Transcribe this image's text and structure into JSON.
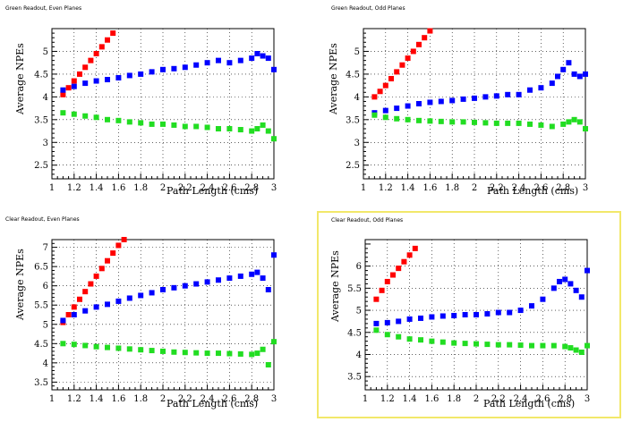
{
  "chart_data": [
    {
      "type": "scatter",
      "title": "Green Readout, Even Planes",
      "xlabel": "Path Length (cms)",
      "ylabel": "Average NPEs",
      "xlim": [
        1,
        3
      ],
      "ylim": [
        2.2,
        5.5
      ],
      "x_ticks": [
        "1",
        "1.2",
        "1.4",
        "1.6",
        "1.8",
        "2",
        "2.2",
        "2.4",
        "2.6",
        "2.8",
        "3"
      ],
      "y_ticks": [
        2.5,
        3,
        3.5,
        4,
        4.5,
        5
      ],
      "x_tick_labels": [
        "1",
        "1.2",
        "1.4",
        "1.6",
        "1.8",
        "2",
        "2.2",
        "2.4",
        "2.6",
        "2.8",
        "3"
      ],
      "y_tick_labels": [
        "2.5",
        "3",
        "3.5",
        "4",
        "4.5",
        "5"
      ],
      "series": [
        {
          "color": "#ff0000",
          "x": [
            1.1,
            1.15,
            1.2,
            1.25,
            1.3,
            1.35,
            1.4,
            1.45,
            1.5,
            1.55,
            1.6
          ],
          "y": [
            4.05,
            4.2,
            4.35,
            4.5,
            4.65,
            4.8,
            4.95,
            5.1,
            5.25,
            5.4,
            5.55
          ]
        },
        {
          "color": "#0000ff",
          "x": [
            1.1,
            1.2,
            1.3,
            1.4,
            1.5,
            1.6,
            1.7,
            1.8,
            1.9,
            2.0,
            2.1,
            2.2,
            2.3,
            2.4,
            2.5,
            2.6,
            2.7,
            2.8,
            2.85,
            2.9,
            2.95,
            3.0
          ],
          "y": [
            4.15,
            4.23,
            4.3,
            4.35,
            4.38,
            4.42,
            4.47,
            4.5,
            4.55,
            4.6,
            4.62,
            4.65,
            4.7,
            4.75,
            4.8,
            4.75,
            4.8,
            4.85,
            4.95,
            4.9,
            4.85,
            4.6
          ]
        },
        {
          "color": "#22dd22",
          "x": [
            1.1,
            1.2,
            1.3,
            1.4,
            1.5,
            1.6,
            1.7,
            1.8,
            1.9,
            2.0,
            2.1,
            2.2,
            2.3,
            2.4,
            2.5,
            2.6,
            2.7,
            2.8,
            2.85,
            2.9,
            2.95,
            3.0
          ],
          "y": [
            3.65,
            3.62,
            3.58,
            3.55,
            3.5,
            3.48,
            3.45,
            3.43,
            3.4,
            3.4,
            3.38,
            3.35,
            3.35,
            3.33,
            3.3,
            3.3,
            3.28,
            3.25,
            3.3,
            3.38,
            3.25,
            3.08
          ]
        }
      ]
    },
    {
      "type": "scatter",
      "title": "Green Readout, Odd Planes",
      "xlabel": "Path Length (cms)",
      "ylabel": "Average NPEs",
      "xlim": [
        1,
        3
      ],
      "ylim": [
        2.2,
        5.5
      ],
      "x_ticks": [
        "1",
        "1.2",
        "1.4",
        "1.6",
        "1.8",
        "2",
        "2.2",
        "2.4",
        "2.6",
        "2.8",
        "3"
      ],
      "y_ticks": [
        2.5,
        3,
        3.5,
        4,
        4.5,
        5
      ],
      "x_tick_labels": [
        "1",
        "1.2",
        "1.4",
        "1.6",
        "1.8",
        "2",
        "2.2",
        "2.4",
        "2.6",
        "2.8",
        "3"
      ],
      "y_tick_labels": [
        "2.5",
        "3",
        "3.5",
        "4",
        "4.5",
        "5"
      ],
      "series": [
        {
          "color": "#ff0000",
          "x": [
            1.1,
            1.15,
            1.2,
            1.25,
            1.3,
            1.35,
            1.4,
            1.45,
            1.5,
            1.55,
            1.6
          ],
          "y": [
            4.0,
            4.12,
            4.25,
            4.4,
            4.55,
            4.7,
            4.85,
            5.0,
            5.15,
            5.3,
            5.45
          ]
        },
        {
          "color": "#0000ff",
          "x": [
            1.1,
            1.2,
            1.3,
            1.4,
            1.5,
            1.6,
            1.7,
            1.8,
            1.9,
            2.0,
            2.1,
            2.2,
            2.3,
            2.4,
            2.5,
            2.6,
            2.7,
            2.75,
            2.8,
            2.85,
            2.9,
            2.95,
            3.0
          ],
          "y": [
            3.65,
            3.7,
            3.75,
            3.8,
            3.85,
            3.88,
            3.9,
            3.92,
            3.95,
            3.97,
            4.0,
            4.02,
            4.05,
            4.05,
            4.15,
            4.2,
            4.3,
            4.45,
            4.6,
            4.75,
            4.5,
            4.45,
            4.5
          ]
        },
        {
          "color": "#22dd22",
          "x": [
            1.1,
            1.2,
            1.3,
            1.4,
            1.5,
            1.6,
            1.7,
            1.8,
            1.9,
            2.0,
            2.1,
            2.2,
            2.3,
            2.4,
            2.5,
            2.6,
            2.7,
            2.8,
            2.85,
            2.9,
            2.95,
            3.0
          ],
          "y": [
            3.6,
            3.55,
            3.52,
            3.5,
            3.48,
            3.47,
            3.46,
            3.45,
            3.45,
            3.44,
            3.43,
            3.42,
            3.42,
            3.42,
            3.4,
            3.38,
            3.35,
            3.4,
            3.45,
            3.5,
            3.45,
            3.3
          ]
        }
      ]
    },
    {
      "type": "scatter",
      "title": "Clear Readout, Even Planes",
      "xlabel": "Path Length (cms)",
      "ylabel": "Average NPEs",
      "xlim": [
        1,
        3
      ],
      "ylim": [
        3.3,
        7.2
      ],
      "x_ticks": [
        "1",
        "1.2",
        "1.4",
        "1.6",
        "1.8",
        "2",
        "2.2",
        "2.4",
        "2.6",
        "2.8",
        "3"
      ],
      "y_ticks": [
        3.5,
        4,
        4.5,
        5,
        5.5,
        6,
        6.5,
        7
      ],
      "x_tick_labels": [
        "1",
        "1.2",
        "1.4",
        "1.6",
        "1.8",
        "2",
        "2.2",
        "2.4",
        "2.6",
        "2.8",
        "3"
      ],
      "y_tick_labels": [
        "3.5",
        "4",
        "4.5",
        "5",
        "5.5",
        "6",
        "6.5",
        "7"
      ],
      "series": [
        {
          "color": "#ff0000",
          "x": [
            1.1,
            1.15,
            1.2,
            1.25,
            1.3,
            1.35,
            1.4,
            1.45,
            1.5,
            1.55,
            1.6,
            1.65
          ],
          "y": [
            5.05,
            5.25,
            5.45,
            5.65,
            5.85,
            6.05,
            6.25,
            6.45,
            6.65,
            6.85,
            7.05,
            7.2
          ]
        },
        {
          "color": "#0000ff",
          "x": [
            1.1,
            1.2,
            1.3,
            1.4,
            1.5,
            1.6,
            1.7,
            1.8,
            1.9,
            2.0,
            2.1,
            2.2,
            2.3,
            2.4,
            2.5,
            2.6,
            2.7,
            2.8,
            2.85,
            2.9,
            2.95,
            3.0
          ],
          "y": [
            5.1,
            5.25,
            5.35,
            5.45,
            5.52,
            5.6,
            5.68,
            5.75,
            5.82,
            5.9,
            5.95,
            6.0,
            6.05,
            6.1,
            6.15,
            6.2,
            6.25,
            6.3,
            6.35,
            6.2,
            5.9,
            6.8
          ]
        },
        {
          "color": "#22dd22",
          "x": [
            1.1,
            1.2,
            1.3,
            1.4,
            1.5,
            1.6,
            1.7,
            1.8,
            1.9,
            2.0,
            2.1,
            2.2,
            2.3,
            2.4,
            2.5,
            2.6,
            2.7,
            2.8,
            2.85,
            2.9,
            2.95,
            3.0
          ],
          "y": [
            4.5,
            4.48,
            4.45,
            4.42,
            4.4,
            4.38,
            4.36,
            4.34,
            4.32,
            4.3,
            4.28,
            4.27,
            4.26,
            4.25,
            4.25,
            4.24,
            4.23,
            4.22,
            4.25,
            4.35,
            3.95,
            4.55
          ]
        }
      ]
    },
    {
      "type": "scatter",
      "title": "Clear Readout, Odd Planes",
      "xlabel": "Path Length (cms)",
      "ylabel": "Average NPEs",
      "xlim": [
        1,
        3
      ],
      "ylim": [
        3.2,
        6.6
      ],
      "x_ticks": [
        "1",
        "1.2",
        "1.4",
        "1.6",
        "1.8",
        "2",
        "2.2",
        "2.4",
        "2.6",
        "2.8",
        "3"
      ],
      "y_ticks": [
        3.5,
        4,
        4.5,
        5,
        5.5,
        6
      ],
      "x_tick_labels": [
        "1",
        "1.2",
        "1.4",
        "1.6",
        "1.8",
        "2",
        "2.2",
        "2.4",
        "2.6",
        "2.8",
        "3"
      ],
      "y_tick_labels": [
        "3.5",
        "4",
        "4.5",
        "5",
        "5.5",
        "6"
      ],
      "series": [
        {
          "color": "#ff0000",
          "x": [
            1.1,
            1.15,
            1.2,
            1.25,
            1.3,
            1.35,
            1.4,
            1.45
          ],
          "y": [
            5.25,
            5.45,
            5.65,
            5.8,
            5.95,
            6.1,
            6.25,
            6.4
          ]
        },
        {
          "color": "#0000ff",
          "x": [
            1.1,
            1.2,
            1.3,
            1.4,
            1.5,
            1.6,
            1.7,
            1.8,
            1.9,
            2.0,
            2.1,
            2.2,
            2.3,
            2.4,
            2.5,
            2.6,
            2.7,
            2.75,
            2.8,
            2.85,
            2.9,
            2.95,
            3.0
          ],
          "y": [
            4.7,
            4.72,
            4.75,
            4.8,
            4.82,
            4.85,
            4.87,
            4.88,
            4.9,
            4.9,
            4.92,
            4.95,
            4.95,
            5.0,
            5.1,
            5.25,
            5.5,
            5.65,
            5.7,
            5.6,
            5.45,
            5.3,
            5.9
          ]
        },
        {
          "color": "#22dd22",
          "x": [
            1.1,
            1.2,
            1.3,
            1.4,
            1.5,
            1.6,
            1.7,
            1.8,
            1.9,
            2.0,
            2.1,
            2.2,
            2.3,
            2.4,
            2.5,
            2.6,
            2.7,
            2.8,
            2.85,
            2.9,
            2.95,
            3.0
          ],
          "y": [
            4.55,
            4.45,
            4.4,
            4.35,
            4.33,
            4.3,
            4.28,
            4.26,
            4.25,
            4.24,
            4.23,
            4.22,
            4.22,
            4.21,
            4.2,
            4.2,
            4.2,
            4.18,
            4.15,
            4.1,
            4.05,
            4.2
          ]
        }
      ]
    }
  ]
}
